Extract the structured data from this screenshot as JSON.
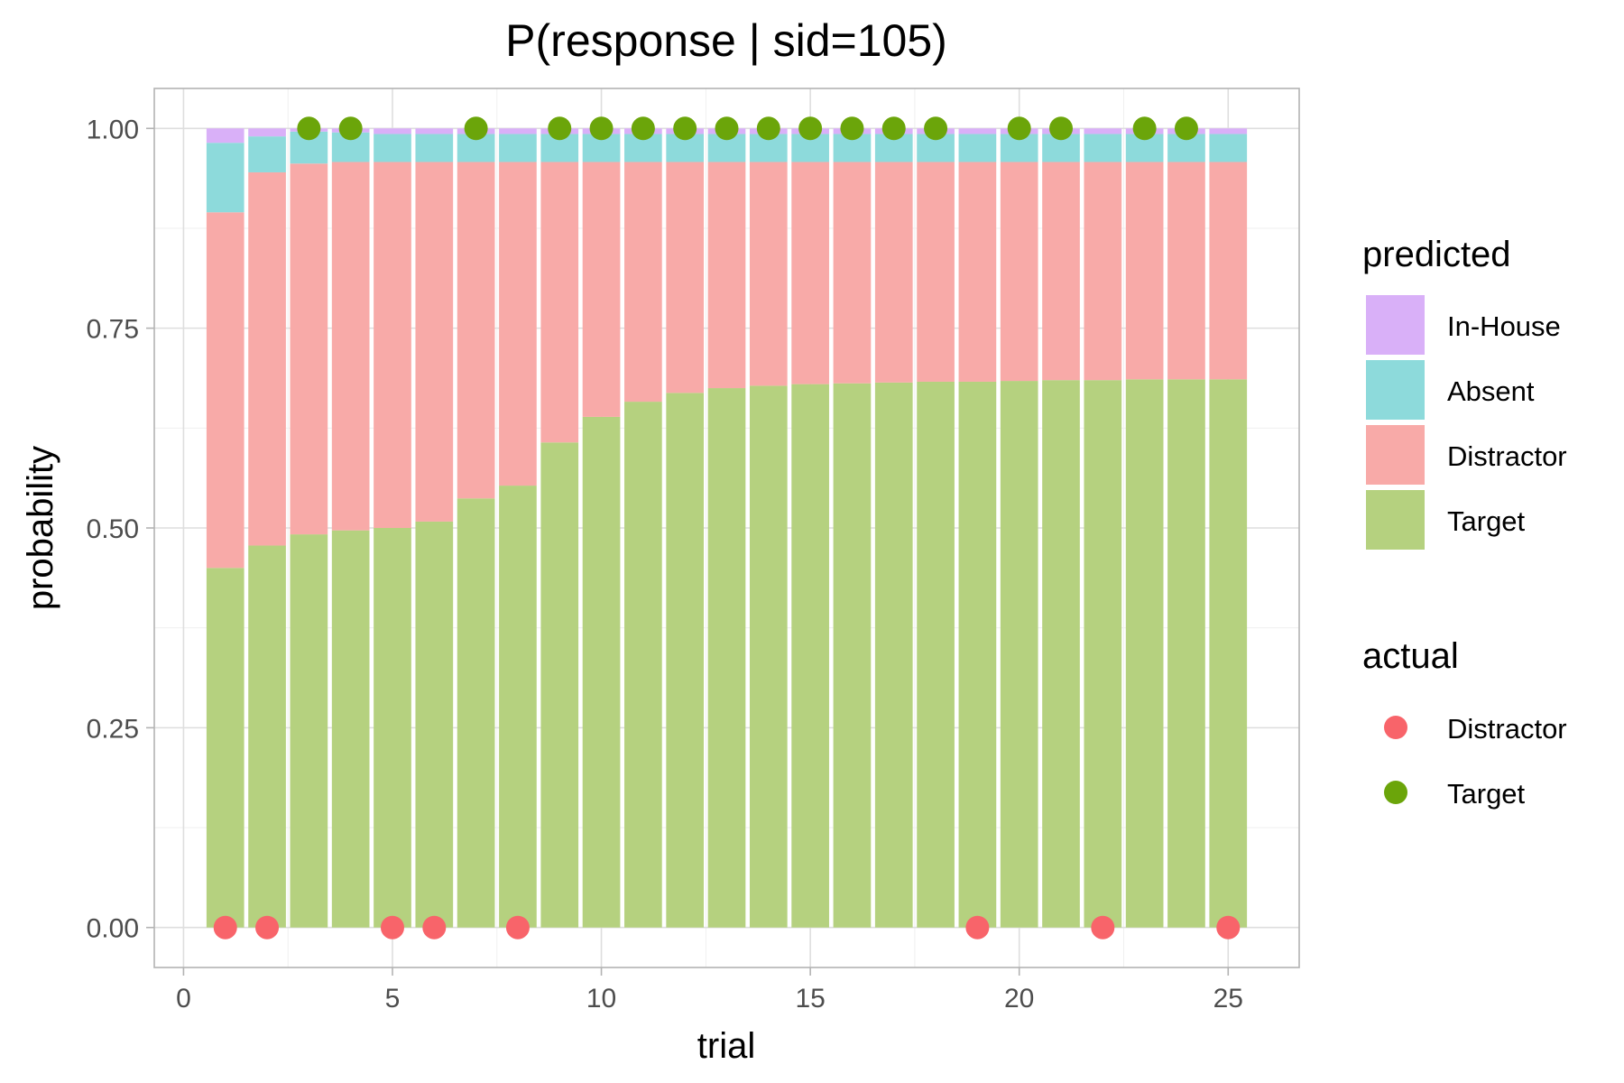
{
  "chart_data": {
    "type": "bar",
    "stacked": true,
    "title": "P(response | sid=105)",
    "xlabel": "trial",
    "ylabel": "probability",
    "xlim": [
      -0.7,
      26.7
    ],
    "ylim": [
      -0.05,
      1.05
    ],
    "x_ticks": [
      0,
      5,
      10,
      15,
      20,
      25
    ],
    "y_ticks": [
      0.0,
      0.25,
      0.5,
      0.75,
      1.0
    ],
    "y_tick_labels": [
      "0.00",
      "0.25",
      "0.50",
      "0.75",
      "1.00"
    ],
    "x_tick_labels": [
      "0",
      "5",
      "10",
      "15",
      "20",
      "25"
    ],
    "grid": true,
    "legend_position": "right",
    "trials": [
      1,
      2,
      3,
      4,
      5,
      6,
      7,
      8,
      9,
      10,
      11,
      12,
      13,
      14,
      15,
      16,
      17,
      18,
      19,
      20,
      21,
      22,
      23,
      24,
      25
    ],
    "series": [
      {
        "name": "Target",
        "color": "#b5d17f",
        "values": [
          0.45,
          0.478,
          0.492,
          0.497,
          0.5,
          0.508,
          0.537,
          0.553,
          0.607,
          0.639,
          0.658,
          0.669,
          0.675,
          0.678,
          0.68,
          0.681,
          0.682,
          0.683,
          0.683,
          0.684,
          0.685,
          0.685,
          0.686,
          0.686,
          0.686
        ]
      },
      {
        "name": "Distractor",
        "color": "#f8aaa8",
        "values": [
          0.445,
          0.467,
          0.464,
          0.461,
          0.458,
          0.45,
          0.421,
          0.405,
          0.351,
          0.319,
          0.3,
          0.289,
          0.283,
          0.28,
          0.278,
          0.277,
          0.276,
          0.275,
          0.275,
          0.274,
          0.273,
          0.273,
          0.272,
          0.272,
          0.272
        ]
      },
      {
        "name": "Absent",
        "color": "#8ddadb",
        "values": [
          0.087,
          0.045,
          0.04,
          0.037,
          0.035,
          0.035,
          0.035,
          0.035,
          0.035,
          0.035,
          0.035,
          0.035,
          0.035,
          0.035,
          0.035,
          0.035,
          0.035,
          0.035,
          0.035,
          0.035,
          0.035,
          0.035,
          0.035,
          0.035,
          0.035
        ]
      },
      {
        "name": "In-House",
        "color": "#d9b0f8",
        "values": [
          0.018,
          0.01,
          0.004,
          0.005,
          0.007,
          0.007,
          0.007,
          0.007,
          0.007,
          0.007,
          0.007,
          0.007,
          0.007,
          0.007,
          0.007,
          0.007,
          0.007,
          0.007,
          0.007,
          0.007,
          0.007,
          0.007,
          0.007,
          0.007,
          0.007
        ]
      }
    ],
    "actual": {
      "categories": [
        {
          "name": "Distractor",
          "color": "#f8646a",
          "y": 0
        },
        {
          "name": "Target",
          "color": "#6ba50a",
          "y": 1
        }
      ],
      "values": [
        "Distractor",
        "Distractor",
        "Target",
        "Target",
        "Distractor",
        "Distractor",
        "Target",
        "Distractor",
        "Target",
        "Target",
        "Target",
        "Target",
        "Target",
        "Target",
        "Target",
        "Target",
        "Target",
        "Target",
        "Distractor",
        "Target",
        "Target",
        "Distractor",
        "Target",
        "Target",
        "Distractor"
      ]
    }
  },
  "legend": {
    "predicted_title": "predicted",
    "predicted_items": [
      {
        "label": "In-House",
        "color": "#d9b0f8"
      },
      {
        "label": "Absent",
        "color": "#8ddadb"
      },
      {
        "label": "Distractor",
        "color": "#f8aaa8"
      },
      {
        "label": "Target",
        "color": "#b5d17f"
      }
    ],
    "actual_title": "actual",
    "actual_items": [
      {
        "label": "Distractor",
        "color": "#f8646a"
      },
      {
        "label": "Target",
        "color": "#6ba50a"
      }
    ]
  }
}
